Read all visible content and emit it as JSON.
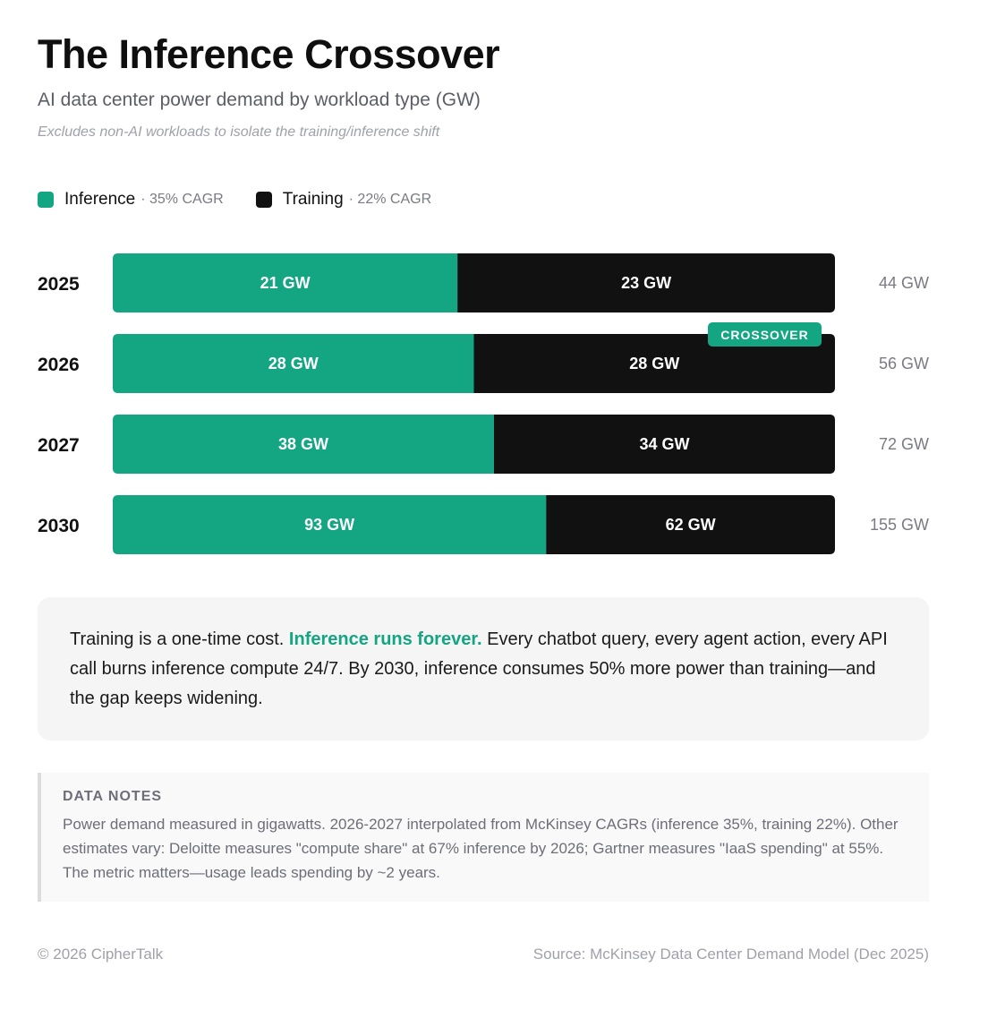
{
  "header": {
    "title": "The Inference Crossover",
    "subtitle": "AI data center power demand by workload type (GW)",
    "note": "Excludes non-AI workloads to isolate the training/inference shift"
  },
  "legend": [
    {
      "name": "Inference",
      "cagr": "· 35% CAGR",
      "color": "#14a583"
    },
    {
      "name": "Training",
      "cagr": "· 22% CAGR",
      "color": "#111111"
    }
  ],
  "chart_data": {
    "type": "bar",
    "orientation": "horizontal",
    "stacked": true,
    "normalized": true,
    "categories": [
      "2025",
      "2026",
      "2027",
      "2030"
    ],
    "series": [
      {
        "name": "Inference",
        "values": [
          21,
          28,
          38,
          93
        ],
        "labels": [
          "21 GW",
          "28 GW",
          "38 GW",
          "93 GW"
        ],
        "color": "#14a583"
      },
      {
        "name": "Training",
        "values": [
          23,
          28,
          34,
          62
        ],
        "labels": [
          "23 GW",
          "28 GW",
          "34 GW",
          "62 GW"
        ],
        "color": "#111111"
      }
    ],
    "totals": [
      "44 GW",
      "56 GW",
      "72 GW",
      "155 GW"
    ],
    "annotation": {
      "category": "2026",
      "text": "CROSSOVER",
      "color": "#14a583"
    }
  },
  "callout": {
    "lead": "Training is a one-time cost. ",
    "highlight": "Inference runs forever.",
    "rest": " Every chatbot query, every agent action, every API call burns inference compute 24/7. By 2030, inference consumes 50% more power than training—and the gap keeps widening."
  },
  "notes": {
    "title": "DATA NOTES",
    "body": "Power demand measured in gigawatts. 2026-2027 interpolated from McKinsey CAGRs (inference 35%, training 22%). Other estimates vary: Deloitte measures \"compute share\" at 67% inference by 2026; Gartner measures \"IaaS spending\" at 55%. The metric matters—usage leads spending by ~2 years."
  },
  "footer": {
    "copyright": "© 2026 CipherTalk",
    "source": "Source: McKinsey Data Center Demand Model (Dec 2025)"
  }
}
